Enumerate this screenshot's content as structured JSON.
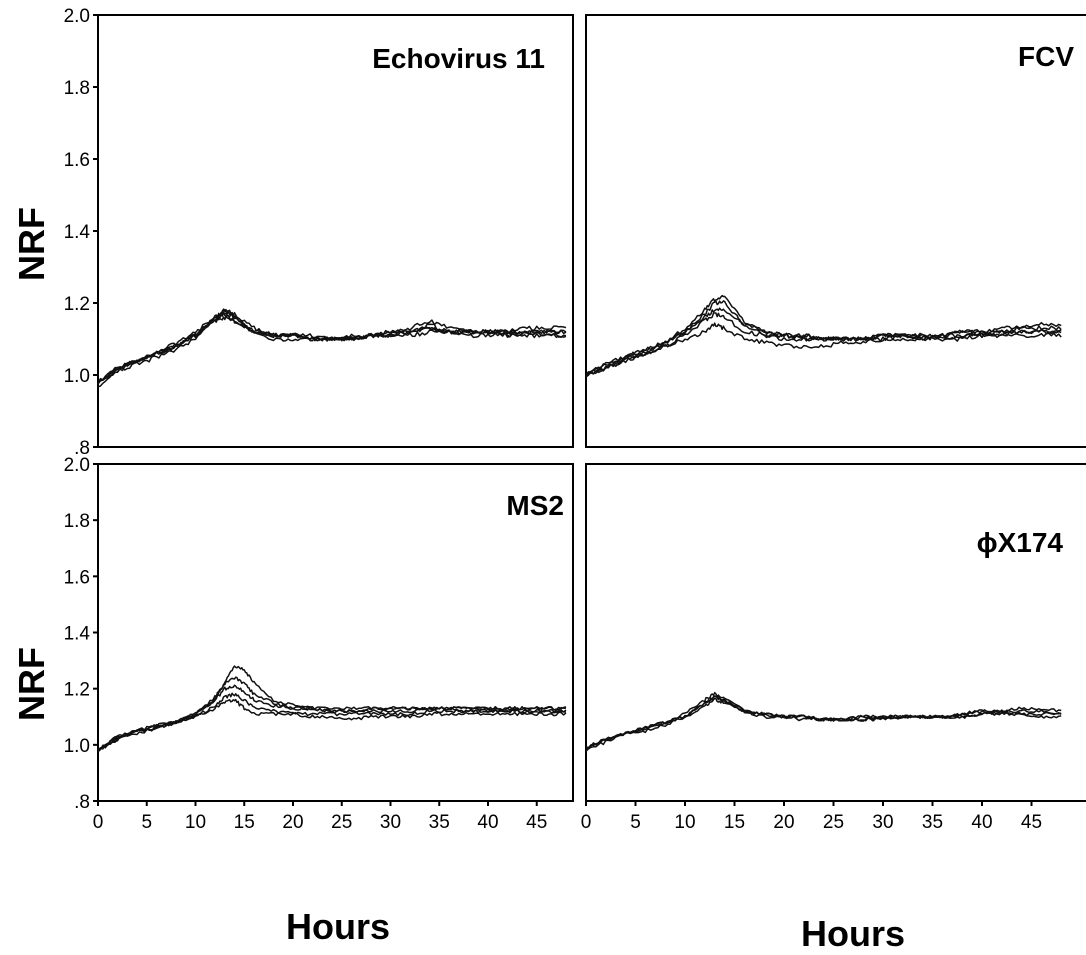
{
  "chart_data": [
    {
      "type": "line",
      "title": "Echovirus 11",
      "xlabel": "",
      "ylabel": "NRF",
      "xlim": [
        0,
        48
      ],
      "ylim": [
        0.8,
        2.0
      ],
      "yticks": [
        "2.0",
        "1.8",
        "1.6",
        "1.4",
        "1.2",
        "1.0",
        ".8"
      ],
      "xticks": [],
      "series": [
        {
          "x": [
            0,
            2,
            4,
            6,
            8,
            10,
            12,
            13,
            14,
            16,
            18,
            20,
            22,
            24,
            26,
            28,
            30,
            32,
            34,
            36,
            38,
            40,
            42,
            44,
            46,
            48
          ],
          "values": [
            0.98,
            1.02,
            1.04,
            1.06,
            1.08,
            1.11,
            1.16,
            1.17,
            1.16,
            1.12,
            1.11,
            1.11,
            1.11,
            1.1,
            1.11,
            1.11,
            1.12,
            1.12,
            1.14,
            1.12,
            1.12,
            1.12,
            1.12,
            1.12,
            1.12,
            1.12
          ]
        },
        {
          "x": [
            0,
            2,
            4,
            6,
            8,
            10,
            12,
            13,
            14,
            16,
            18,
            20,
            22,
            24,
            26,
            28,
            30,
            32,
            34,
            36,
            38,
            40,
            42,
            44,
            46,
            48
          ],
          "values": [
            0.98,
            1.01,
            1.03,
            1.05,
            1.07,
            1.1,
            1.15,
            1.18,
            1.17,
            1.13,
            1.11,
            1.11,
            1.1,
            1.1,
            1.1,
            1.11,
            1.12,
            1.13,
            1.15,
            1.13,
            1.12,
            1.12,
            1.12,
            1.13,
            1.13,
            1.13
          ]
        },
        {
          "x": [
            0,
            2,
            4,
            6,
            8,
            10,
            12,
            13,
            14,
            16,
            18,
            20,
            22,
            24,
            26,
            28,
            30,
            32,
            34,
            36,
            38,
            40,
            42,
            44,
            46,
            48
          ],
          "values": [
            0.97,
            1.01,
            1.04,
            1.06,
            1.08,
            1.12,
            1.16,
            1.17,
            1.15,
            1.12,
            1.1,
            1.1,
            1.1,
            1.1,
            1.1,
            1.11,
            1.11,
            1.12,
            1.13,
            1.12,
            1.12,
            1.12,
            1.11,
            1.12,
            1.12,
            1.12
          ]
        },
        {
          "x": [
            0,
            2,
            4,
            6,
            8,
            10,
            12,
            13,
            14,
            16,
            18,
            20,
            22,
            24,
            26,
            28,
            30,
            32,
            34,
            36,
            38,
            40,
            42,
            44,
            46,
            48
          ],
          "values": [
            0.98,
            1.02,
            1.04,
            1.06,
            1.09,
            1.11,
            1.15,
            1.16,
            1.15,
            1.12,
            1.11,
            1.11,
            1.1,
            1.1,
            1.1,
            1.11,
            1.11,
            1.11,
            1.12,
            1.12,
            1.11,
            1.11,
            1.11,
            1.11,
            1.11,
            1.11
          ]
        },
        {
          "x": [
            0,
            2,
            4,
            6,
            8,
            10,
            12,
            13,
            14,
            16,
            18,
            20,
            22,
            24,
            26,
            28,
            30,
            32,
            34,
            36,
            38,
            40,
            42,
            44,
            46,
            48
          ],
          "values": [
            0.98,
            1.02,
            1.04,
            1.06,
            1.08,
            1.11,
            1.16,
            1.18,
            1.16,
            1.12,
            1.11,
            1.11,
            1.1,
            1.1,
            1.1,
            1.11,
            1.11,
            1.12,
            1.13,
            1.12,
            1.12,
            1.12,
            1.12,
            1.12,
            1.11,
            1.11
          ]
        }
      ]
    },
    {
      "type": "line",
      "title": "FCV",
      "xlabel": "",
      "ylabel": "",
      "xlim": [
        0,
        48
      ],
      "ylim": [
        0.8,
        2.0
      ],
      "yticks": [],
      "xticks": [],
      "series": [
        {
          "x": [
            0,
            2,
            4,
            6,
            8,
            10,
            12,
            13,
            14,
            16,
            18,
            20,
            22,
            24,
            26,
            28,
            30,
            32,
            34,
            36,
            38,
            40,
            42,
            44,
            46,
            48
          ],
          "values": [
            1.0,
            1.03,
            1.05,
            1.07,
            1.09,
            1.13,
            1.18,
            1.21,
            1.22,
            1.15,
            1.12,
            1.11,
            1.11,
            1.1,
            1.1,
            1.1,
            1.11,
            1.11,
            1.11,
            1.11,
            1.12,
            1.12,
            1.13,
            1.13,
            1.14,
            1.14
          ]
        },
        {
          "x": [
            0,
            2,
            4,
            6,
            8,
            10,
            12,
            13,
            14,
            16,
            18,
            20,
            22,
            24,
            26,
            28,
            30,
            32,
            34,
            36,
            38,
            40,
            42,
            44,
            46,
            48
          ],
          "values": [
            1.0,
            1.02,
            1.04,
            1.06,
            1.09,
            1.12,
            1.17,
            1.2,
            1.2,
            1.14,
            1.12,
            1.11,
            1.11,
            1.1,
            1.1,
            1.1,
            1.11,
            1.11,
            1.1,
            1.11,
            1.12,
            1.12,
            1.12,
            1.13,
            1.13,
            1.13
          ]
        },
        {
          "x": [
            0,
            2,
            4,
            6,
            8,
            10,
            12,
            13,
            14,
            16,
            18,
            20,
            22,
            24,
            26,
            28,
            30,
            32,
            34,
            36,
            38,
            40,
            42,
            44,
            46,
            48
          ],
          "values": [
            1.0,
            1.02,
            1.05,
            1.07,
            1.09,
            1.12,
            1.16,
            1.18,
            1.18,
            1.14,
            1.11,
            1.11,
            1.1,
            1.1,
            1.1,
            1.1,
            1.11,
            1.11,
            1.11,
            1.1,
            1.11,
            1.11,
            1.11,
            1.12,
            1.12,
            1.12
          ]
        },
        {
          "x": [
            0,
            2,
            4,
            6,
            8,
            10,
            12,
            13,
            14,
            16,
            18,
            20,
            22,
            24,
            26,
            28,
            30,
            32,
            34,
            36,
            38,
            40,
            42,
            44,
            46,
            48
          ],
          "values": [
            1.0,
            1.03,
            1.05,
            1.06,
            1.08,
            1.1,
            1.12,
            1.14,
            1.13,
            1.1,
            1.09,
            1.08,
            1.08,
            1.08,
            1.09,
            1.09,
            1.1,
            1.1,
            1.1,
            1.1,
            1.1,
            1.11,
            1.11,
            1.11,
            1.11,
            1.11
          ]
        },
        {
          "x": [
            0,
            2,
            4,
            6,
            8,
            10,
            12,
            13,
            14,
            16,
            18,
            20,
            22,
            24,
            26,
            28,
            30,
            32,
            34,
            36,
            38,
            40,
            42,
            44,
            46,
            48
          ],
          "values": [
            1.0,
            1.02,
            1.04,
            1.06,
            1.08,
            1.11,
            1.15,
            1.17,
            1.16,
            1.12,
            1.11,
            1.1,
            1.1,
            1.1,
            1.1,
            1.1,
            1.1,
            1.11,
            1.1,
            1.11,
            1.11,
            1.11,
            1.12,
            1.12,
            1.12,
            1.12
          ]
        }
      ]
    },
    {
      "type": "line",
      "title": "MS2",
      "xlabel": "Hours",
      "ylabel": "NRF",
      "xlim": [
        0,
        48
      ],
      "ylim": [
        0.8,
        2.0
      ],
      "yticks": [
        "2.0",
        "1.8",
        "1.6",
        "1.4",
        "1.2",
        "1.0",
        ".8"
      ],
      "xticks": [
        "0",
        "5",
        "10",
        "15",
        "20",
        "25",
        "30",
        "35",
        "40",
        "45"
      ],
      "series": [
        {
          "x": [
            0,
            2,
            4,
            6,
            8,
            10,
            12,
            13,
            14,
            15,
            16,
            18,
            20,
            22,
            24,
            26,
            28,
            30,
            32,
            34,
            36,
            38,
            40,
            42,
            44,
            46,
            48
          ],
          "values": [
            0.98,
            1.03,
            1.05,
            1.07,
            1.08,
            1.11,
            1.16,
            1.22,
            1.28,
            1.27,
            1.22,
            1.16,
            1.14,
            1.13,
            1.13,
            1.13,
            1.13,
            1.13,
            1.13,
            1.13,
            1.13,
            1.13,
            1.13,
            1.13,
            1.13,
            1.13,
            1.13
          ]
        },
        {
          "x": [
            0,
            2,
            4,
            6,
            8,
            10,
            12,
            13,
            14,
            15,
            16,
            18,
            20,
            22,
            24,
            26,
            28,
            30,
            32,
            34,
            36,
            38,
            40,
            42,
            44,
            46,
            48
          ],
          "values": [
            0.98,
            1.03,
            1.05,
            1.07,
            1.08,
            1.11,
            1.17,
            1.22,
            1.24,
            1.22,
            1.18,
            1.15,
            1.13,
            1.13,
            1.12,
            1.12,
            1.13,
            1.13,
            1.13,
            1.13,
            1.13,
            1.13,
            1.13,
            1.13,
            1.13,
            1.13,
            1.13
          ]
        },
        {
          "x": [
            0,
            2,
            4,
            6,
            8,
            10,
            12,
            13,
            14,
            15,
            16,
            18,
            20,
            22,
            24,
            26,
            28,
            30,
            32,
            34,
            36,
            38,
            40,
            42,
            44,
            46,
            48
          ],
          "values": [
            0.98,
            1.02,
            1.05,
            1.06,
            1.08,
            1.11,
            1.16,
            1.2,
            1.21,
            1.19,
            1.16,
            1.14,
            1.13,
            1.13,
            1.12,
            1.12,
            1.12,
            1.12,
            1.12,
            1.13,
            1.13,
            1.12,
            1.12,
            1.12,
            1.12,
            1.12,
            1.12
          ]
        },
        {
          "x": [
            0,
            2,
            4,
            6,
            8,
            10,
            12,
            13,
            14,
            15,
            16,
            18,
            20,
            22,
            24,
            26,
            28,
            30,
            32,
            34,
            36,
            38,
            40,
            42,
            44,
            46,
            48
          ],
          "values": [
            0.98,
            1.02,
            1.05,
            1.06,
            1.08,
            1.1,
            1.14,
            1.17,
            1.18,
            1.16,
            1.13,
            1.12,
            1.11,
            1.11,
            1.11,
            1.11,
            1.11,
            1.11,
            1.11,
            1.12,
            1.12,
            1.12,
            1.12,
            1.12,
            1.12,
            1.12,
            1.12
          ]
        },
        {
          "x": [
            0,
            2,
            4,
            6,
            8,
            10,
            12,
            13,
            14,
            15,
            16,
            18,
            20,
            22,
            24,
            26,
            28,
            30,
            32,
            34,
            36,
            38,
            40,
            42,
            44,
            46,
            48
          ],
          "values": [
            0.98,
            1.02,
            1.04,
            1.06,
            1.08,
            1.1,
            1.13,
            1.15,
            1.16,
            1.13,
            1.11,
            1.11,
            1.11,
            1.1,
            1.1,
            1.09,
            1.1,
            1.1,
            1.1,
            1.11,
            1.11,
            1.11,
            1.11,
            1.11,
            1.11,
            1.11,
            1.11
          ]
        }
      ]
    },
    {
      "type": "line",
      "title": "ϕX174",
      "xlabel": "Hours",
      "ylabel": "",
      "xlim": [
        0,
        48
      ],
      "ylim": [
        0.8,
        2.0
      ],
      "yticks": [],
      "xticks": [
        "0",
        "5",
        "10",
        "15",
        "20",
        "25",
        "30",
        "35",
        "40",
        "45"
      ],
      "series": [
        {
          "x": [
            0,
            2,
            4,
            6,
            8,
            10,
            12,
            13,
            14,
            16,
            18,
            20,
            22,
            24,
            26,
            28,
            30,
            32,
            34,
            36,
            38,
            40,
            42,
            44,
            46,
            48
          ],
          "values": [
            0.99,
            1.02,
            1.04,
            1.06,
            1.08,
            1.1,
            1.15,
            1.17,
            1.16,
            1.12,
            1.11,
            1.1,
            1.1,
            1.09,
            1.09,
            1.1,
            1.1,
            1.1,
            1.1,
            1.1,
            1.11,
            1.12,
            1.12,
            1.13,
            1.13,
            1.12
          ]
        },
        {
          "x": [
            0,
            2,
            4,
            6,
            8,
            10,
            12,
            13,
            14,
            16,
            18,
            20,
            22,
            24,
            26,
            28,
            30,
            32,
            34,
            36,
            38,
            40,
            42,
            44,
            46,
            48
          ],
          "values": [
            0.99,
            1.02,
            1.04,
            1.06,
            1.08,
            1.11,
            1.16,
            1.18,
            1.17,
            1.12,
            1.11,
            1.1,
            1.1,
            1.09,
            1.09,
            1.1,
            1.1,
            1.1,
            1.1,
            1.1,
            1.11,
            1.12,
            1.12,
            1.12,
            1.12,
            1.11
          ]
        },
        {
          "x": [
            0,
            2,
            4,
            6,
            8,
            10,
            12,
            13,
            14,
            16,
            18,
            20,
            22,
            24,
            26,
            28,
            30,
            32,
            34,
            36,
            38,
            40,
            42,
            44,
            46,
            48
          ],
          "values": [
            0.98,
            1.01,
            1.04,
            1.05,
            1.07,
            1.1,
            1.14,
            1.16,
            1.15,
            1.12,
            1.11,
            1.1,
            1.1,
            1.09,
            1.09,
            1.09,
            1.09,
            1.1,
            1.1,
            1.1,
            1.1,
            1.11,
            1.11,
            1.11,
            1.11,
            1.11
          ]
        },
        {
          "x": [
            0,
            2,
            4,
            6,
            8,
            10,
            12,
            13,
            14,
            16,
            18,
            20,
            22,
            24,
            26,
            28,
            30,
            32,
            34,
            36,
            38,
            40,
            42,
            44,
            46,
            48
          ],
          "values": [
            0.99,
            1.02,
            1.04,
            1.06,
            1.08,
            1.1,
            1.15,
            1.17,
            1.16,
            1.12,
            1.1,
            1.1,
            1.09,
            1.09,
            1.09,
            1.09,
            1.1,
            1.1,
            1.1,
            1.1,
            1.1,
            1.11,
            1.11,
            1.11,
            1.1,
            1.1
          ]
        }
      ]
    }
  ]
}
